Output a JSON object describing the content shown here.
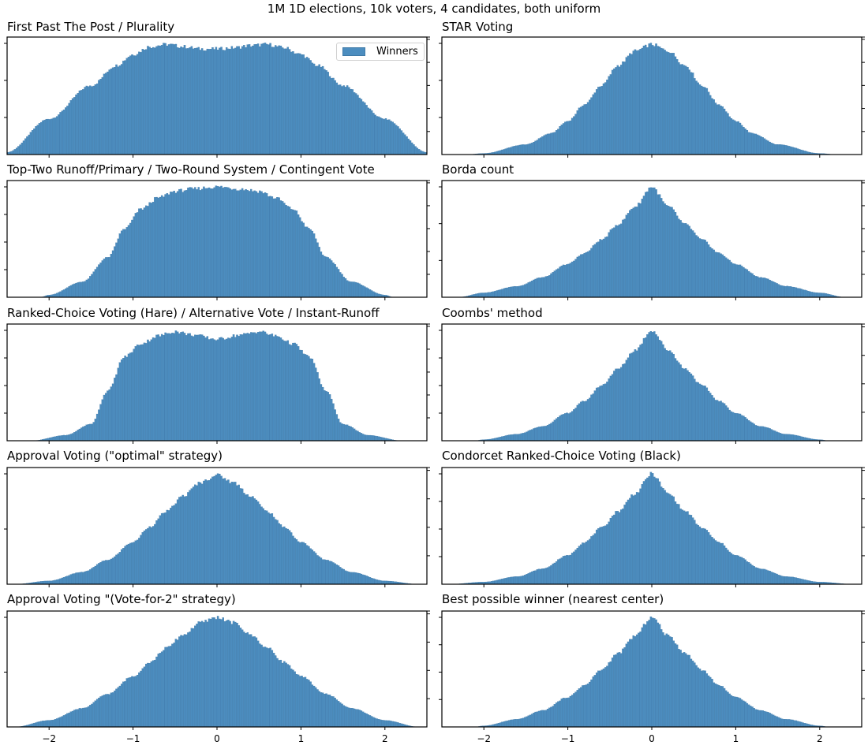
{
  "chart_data": {
    "type": "bar",
    "suptitle": "1M 1D elections, 10k voters, 4 candidates, both uniform",
    "xlim": [
      -2.5,
      2.5
    ],
    "x_ticks": [
      -2,
      -1,
      0,
      1,
      2
    ],
    "x_tick_labels": [
      "−2",
      "−1",
      "0",
      "1",
      "2"
    ],
    "bar_color": "#4c8dbf",
    "edge_color": "#3b72a0",
    "legend": {
      "label": "Winners",
      "placement": "top-right",
      "panel": 0
    },
    "y_tick_labels_visible": false,
    "panels": [
      {
        "title": "First Past The Post / Plurality",
        "profile_x": [
          -2.5,
          -2.0,
          -1.5,
          -1.2,
          -1.0,
          -0.8,
          -0.6,
          -0.4,
          -0.2,
          0.0,
          0.2,
          0.4,
          0.6,
          0.8,
          1.0,
          1.2,
          1.5,
          2.0,
          2.5
        ],
        "profile_y": [
          0.02,
          0.32,
          0.62,
          0.8,
          0.9,
          0.97,
          0.99,
          0.97,
          0.95,
          0.95,
          0.96,
          0.98,
          0.99,
          0.96,
          0.9,
          0.8,
          0.62,
          0.32,
          0.02
        ],
        "y_ticks": 3,
        "right_ticks": 5
      },
      {
        "title": "STAR Voting",
        "profile_x": [
          -2.2,
          -2.0,
          -1.5,
          -1.2,
          -1.0,
          -0.8,
          -0.6,
          -0.4,
          -0.2,
          0.0,
          0.2,
          0.4,
          0.6,
          0.8,
          1.0,
          1.2,
          1.5,
          2.0,
          2.2
        ],
        "profile_y": [
          0.0,
          0.01,
          0.09,
          0.19,
          0.3,
          0.45,
          0.62,
          0.8,
          0.93,
          0.99,
          0.93,
          0.8,
          0.62,
          0.45,
          0.3,
          0.19,
          0.09,
          0.01,
          0.0
        ],
        "y_ticks": 3,
        "right_ticks": 5
      },
      {
        "title": "Top-Two Runoff/Primary / Two-Round System / Contingent Vote",
        "profile_x": [
          -2.1,
          -2.0,
          -1.6,
          -1.3,
          -1.1,
          -0.9,
          -0.7,
          -0.5,
          -0.3,
          0.0,
          0.3,
          0.5,
          0.7,
          0.9,
          1.1,
          1.3,
          1.6,
          2.0,
          2.1
        ],
        "profile_y": [
          0.0,
          0.02,
          0.14,
          0.36,
          0.62,
          0.8,
          0.9,
          0.96,
          0.98,
          1.0,
          0.98,
          0.96,
          0.9,
          0.8,
          0.62,
          0.36,
          0.14,
          0.02,
          0.0
        ],
        "y_ticks": 4,
        "right_ticks": 5
      },
      {
        "title": "Borda count",
        "profile_x": [
          -2.3,
          -2.0,
          -1.6,
          -1.3,
          -1.0,
          -0.8,
          -0.6,
          -0.4,
          -0.2,
          0.0,
          0.2,
          0.4,
          0.6,
          0.8,
          1.0,
          1.3,
          1.6,
          2.0,
          2.3
        ],
        "profile_y": [
          0.0,
          0.04,
          0.1,
          0.18,
          0.3,
          0.4,
          0.52,
          0.66,
          0.82,
          1.0,
          0.82,
          0.66,
          0.52,
          0.4,
          0.3,
          0.18,
          0.1,
          0.04,
          0.0
        ],
        "y_ticks": 3,
        "right_ticks": 5
      },
      {
        "title": "Ranked-Choice Voting (Hare) / Alternative Vote / Instant-Runoff",
        "profile_x": [
          -2.2,
          -1.8,
          -1.5,
          -1.3,
          -1.1,
          -0.9,
          -0.7,
          -0.5,
          -0.3,
          0.0,
          0.3,
          0.5,
          0.7,
          0.9,
          1.1,
          1.3,
          1.5,
          1.8,
          2.2
        ],
        "profile_y": [
          0.0,
          0.05,
          0.15,
          0.45,
          0.76,
          0.88,
          0.95,
          0.99,
          0.96,
          0.92,
          0.96,
          0.99,
          0.95,
          0.88,
          0.76,
          0.45,
          0.15,
          0.05,
          0.0
        ],
        "y_ticks": 4,
        "right_ticks": 5
      },
      {
        "title": "Coombs' method",
        "profile_x": [
          -2.1,
          -2.0,
          -1.6,
          -1.3,
          -1.0,
          -0.8,
          -0.6,
          -0.4,
          -0.2,
          0.0,
          0.2,
          0.4,
          0.6,
          0.8,
          1.0,
          1.3,
          1.6,
          2.0,
          2.1
        ],
        "profile_y": [
          0.0,
          0.01,
          0.06,
          0.13,
          0.25,
          0.36,
          0.5,
          0.65,
          0.82,
          1.0,
          0.82,
          0.65,
          0.5,
          0.36,
          0.25,
          0.13,
          0.06,
          0.01,
          0.0
        ],
        "y_ticks": 4,
        "right_ticks": 4
      },
      {
        "title": "Approval Voting (\"optimal\" strategy)",
        "profile_x": [
          -2.4,
          -2.0,
          -1.6,
          -1.3,
          -1.0,
          -0.8,
          -0.6,
          -0.4,
          -0.2,
          0.0,
          0.2,
          0.4,
          0.6,
          0.8,
          1.0,
          1.3,
          1.6,
          2.0,
          2.4
        ],
        "profile_y": [
          0.0,
          0.03,
          0.11,
          0.22,
          0.38,
          0.52,
          0.66,
          0.8,
          0.92,
          0.99,
          0.92,
          0.8,
          0.66,
          0.52,
          0.38,
          0.22,
          0.11,
          0.03,
          0.0
        ],
        "y_ticks": 2,
        "right_ticks": 4
      },
      {
        "title": "Condorcet Ranked-Choice Voting (Black)",
        "profile_x": [
          -2.4,
          -2.0,
          -1.6,
          -1.3,
          -1.0,
          -0.8,
          -0.6,
          -0.4,
          -0.2,
          0.0,
          0.2,
          0.4,
          0.6,
          0.8,
          1.0,
          1.3,
          1.6,
          2.0,
          2.4
        ],
        "profile_y": [
          0.0,
          0.02,
          0.07,
          0.14,
          0.26,
          0.38,
          0.51,
          0.66,
          0.82,
          1.0,
          0.82,
          0.66,
          0.51,
          0.38,
          0.26,
          0.14,
          0.07,
          0.02,
          0.0
        ],
        "y_ticks": 4,
        "right_ticks": 4
      },
      {
        "title": "Approval Voting \"(Vote-for-2\" strategy)",
        "profile_x": [
          -2.4,
          -2.0,
          -1.6,
          -1.3,
          -1.0,
          -0.8,
          -0.6,
          -0.4,
          -0.2,
          0.0,
          0.2,
          0.4,
          0.6,
          0.8,
          1.0,
          1.3,
          1.6,
          2.0,
          2.4
        ],
        "profile_y": [
          0.0,
          0.06,
          0.17,
          0.3,
          0.46,
          0.59,
          0.72,
          0.84,
          0.95,
          1.0,
          0.95,
          0.84,
          0.72,
          0.59,
          0.46,
          0.3,
          0.17,
          0.06,
          0.0
        ],
        "y_ticks": 2,
        "right_ticks": 4
      },
      {
        "title": "Best possible winner (nearest center)",
        "profile_x": [
          -2.1,
          -2.0,
          -1.6,
          -1.3,
          -1.0,
          -0.8,
          -0.6,
          -0.4,
          -0.2,
          0.0,
          0.2,
          0.4,
          0.6,
          0.8,
          1.0,
          1.3,
          1.6,
          2.0,
          2.1
        ],
        "profile_y": [
          0.0,
          0.01,
          0.07,
          0.15,
          0.27,
          0.38,
          0.52,
          0.67,
          0.83,
          1.0,
          0.83,
          0.67,
          0.52,
          0.38,
          0.27,
          0.15,
          0.07,
          0.01,
          0.0
        ],
        "y_ticks": 4,
        "right_ticks": 4
      }
    ]
  }
}
